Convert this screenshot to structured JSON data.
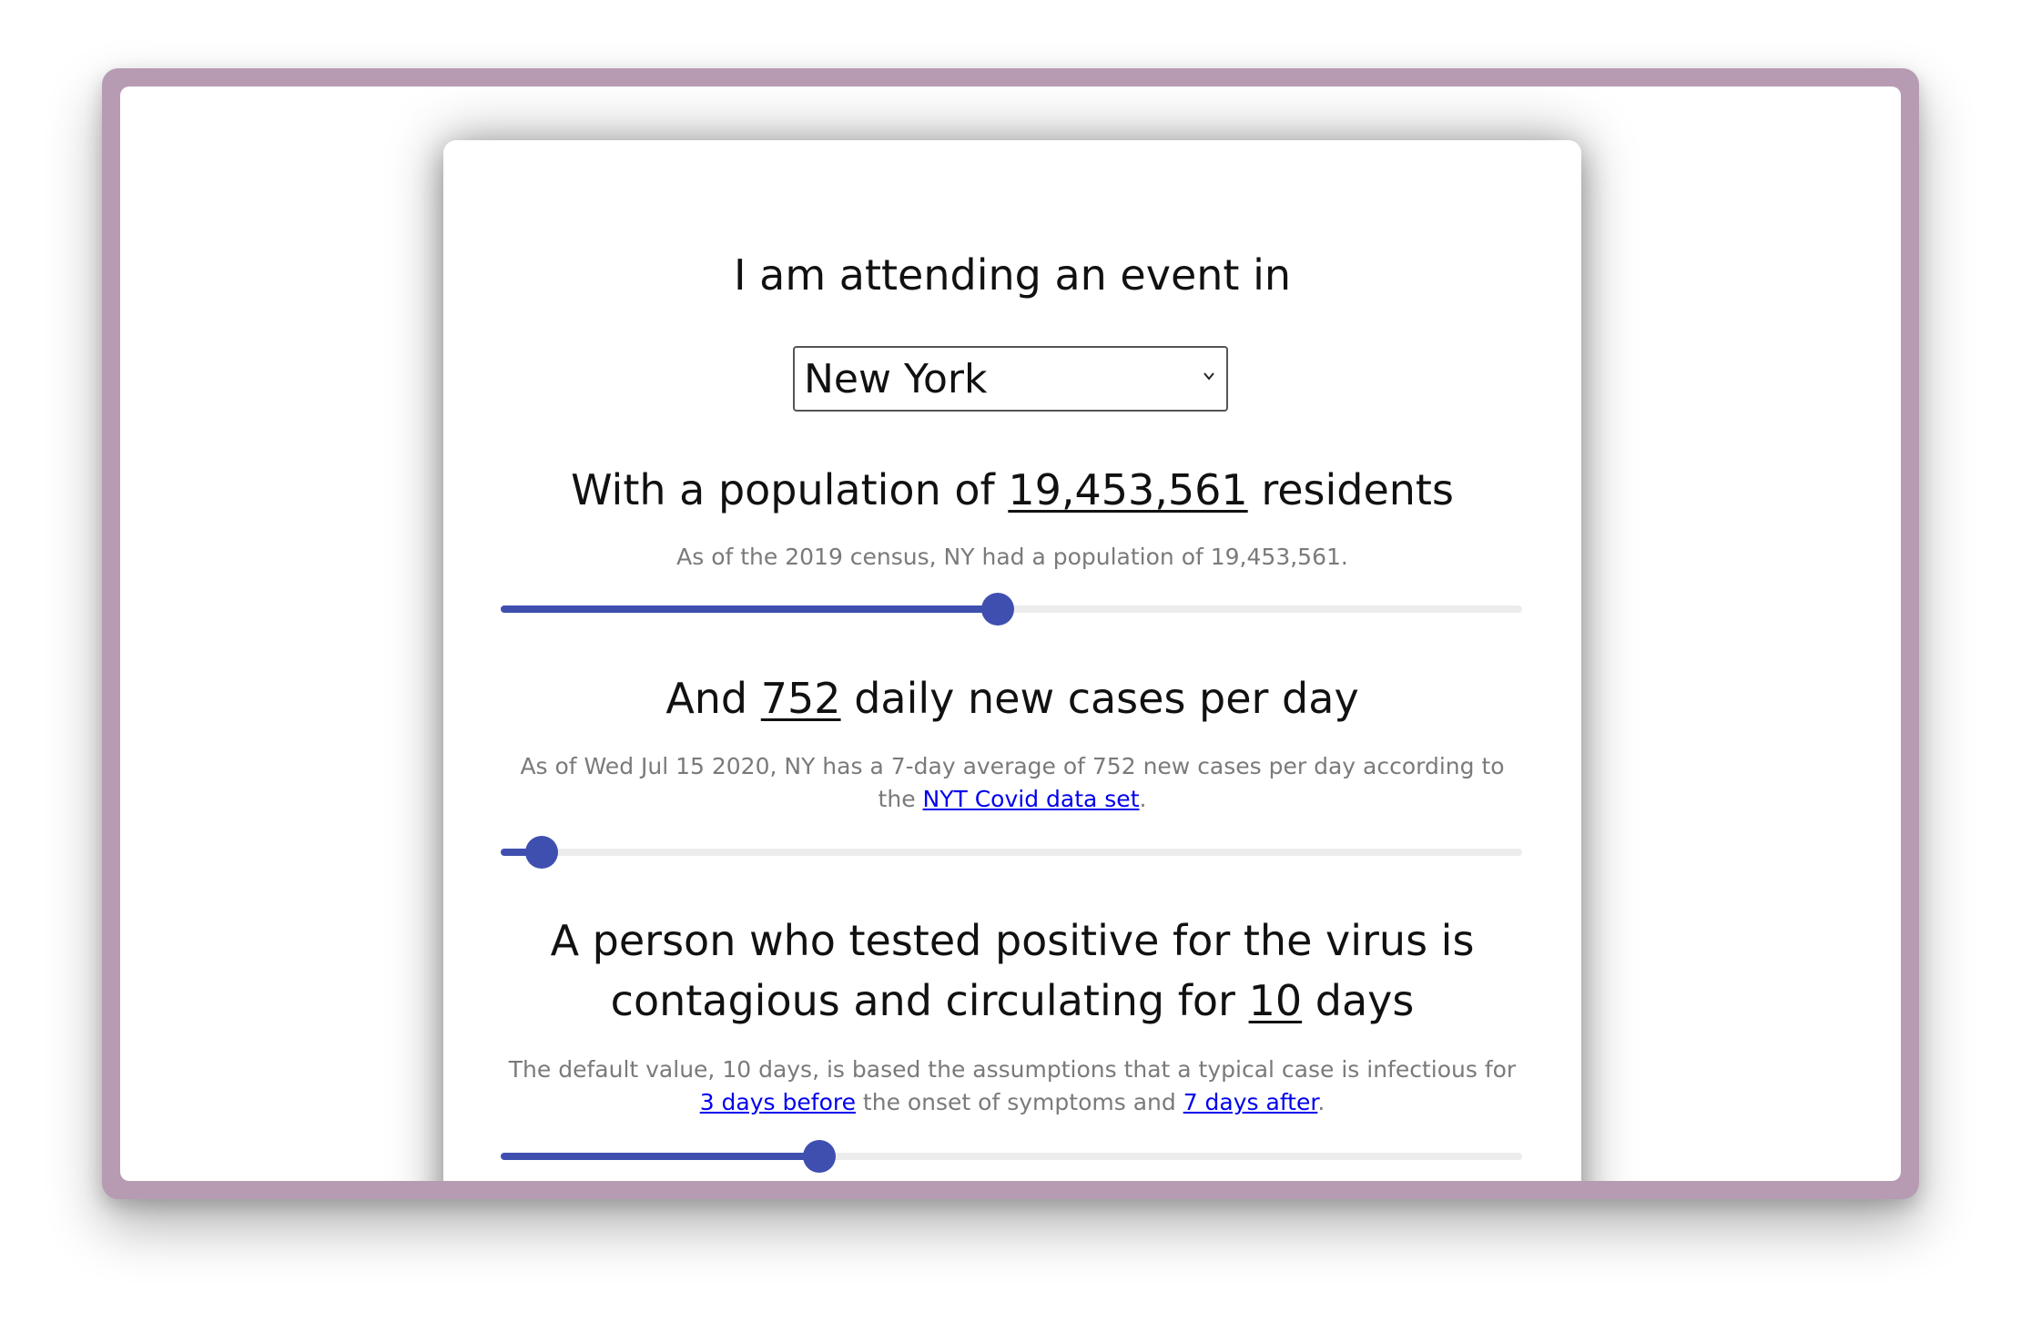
{
  "event": {
    "intro": "I am attending an event in",
    "location_selected": "New York"
  },
  "population": {
    "prefix": "With a population of ",
    "value": "19,453,561",
    "suffix": " residents",
    "note": "As of the 2019 census, NY had a population of 19,453,561.",
    "slider_fraction": 0.487
  },
  "cases": {
    "prefix": "And ",
    "value": "752",
    "suffix": " daily new cases per day",
    "note_prefix": "As of Wed Jul 15 2020, NY has a 7-day average of 752 new cases per day according to the ",
    "note_link": "NYT Covid data set",
    "note_suffix": ".",
    "slider_fraction": 0.04
  },
  "contagious": {
    "line1": "A person who tested positive for the virus is",
    "line2_prefix": "contagious and circulating for ",
    "value": "10",
    "line2_suffix": " days",
    "note_prefix": "The default value, 10 days, is based the assumptions that a typical case is infectious for ",
    "note_link1": "3 days before",
    "note_middle": " the onset of symptoms and ",
    "note_link2": "7 days after",
    "note_suffix": ".",
    "slider_fraction": 0.312
  },
  "colors": {
    "window_frame": "#b69bb3",
    "slider_accent": "#3f4fb0",
    "slider_track": "#ececec",
    "link": "#0000ee"
  }
}
